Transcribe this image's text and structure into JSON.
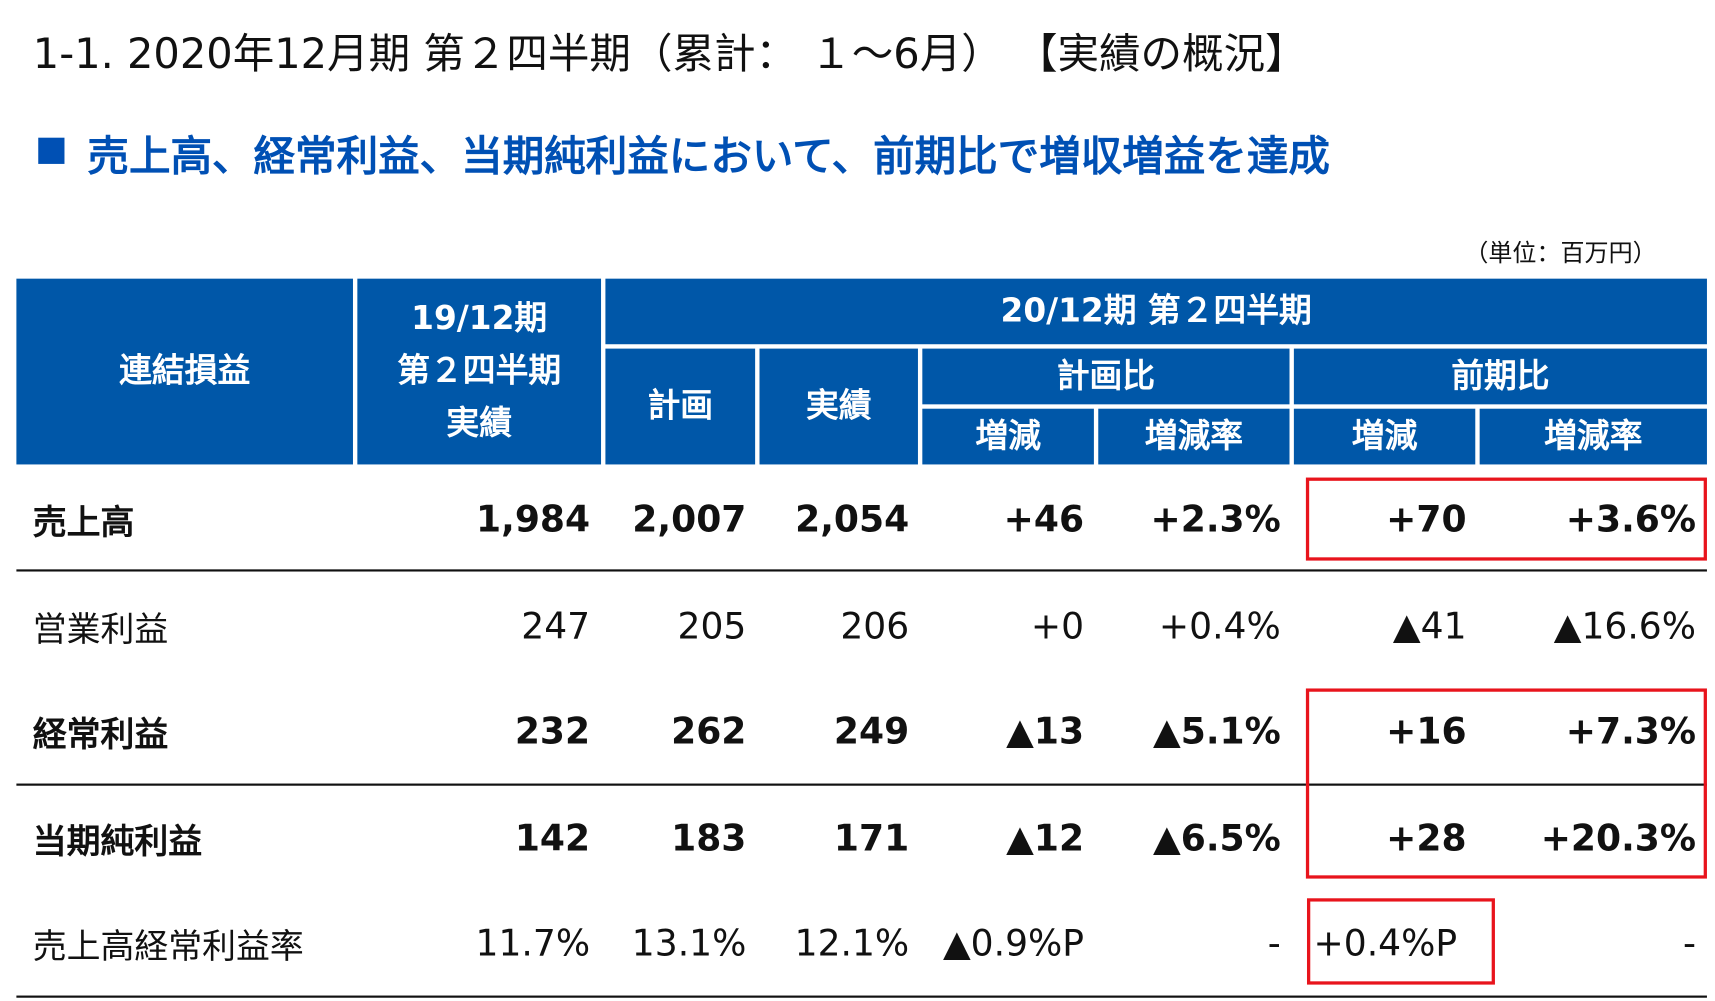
{
  "title": "1-1.  2020年12月期  第２四半期（累計： １～6月）  【実績の概況】",
  "subtitle": "売上高、経常利益、当期純利益において、前期比で増収増益を達成",
  "unit": "（単位：百万円）",
  "header": {
    "item": "連結損益",
    "previous": [
      "19/12期",
      "第２四半期",
      "実績"
    ],
    "current": "20/12期  第２四半期",
    "plan": "計画",
    "actual": "実績",
    "vs_plan": "計画比",
    "vs_prev": "前期比",
    "change_plan": "増減",
    "rate_plan": "増減率",
    "change_prev": "増減",
    "rate_prev": "増減率"
  },
  "rows": [
    {
      "label": "売上高",
      "cells": [
        "1,984",
        "2,007",
        "2,054",
        "+46",
        "+2.3%",
        "+70",
        "+3.6%"
      ]
    },
    {
      "label": "営業利益",
      "cells": [
        "247",
        "205",
        "206",
        "+0",
        "+0.4%",
        "▲41",
        "▲16.6%"
      ]
    },
    {
      "label": "経常利益",
      "cells": [
        "232",
        "262",
        "249",
        "▲13",
        "▲5.1%",
        "+16",
        "+7.3%"
      ]
    },
    {
      "label": "当期純利益",
      "cells": [
        "142",
        "183",
        "171",
        "▲12",
        "▲6.5%",
        "+28",
        "+20.3%"
      ]
    },
    {
      "label": "売上高経常利益率",
      "cells": [
        "11.7%",
        "13.1%",
        "12.1%",
        "▲0.9%P",
        "-",
        "+0.4%P",
        "-"
      ]
    }
  ]
}
